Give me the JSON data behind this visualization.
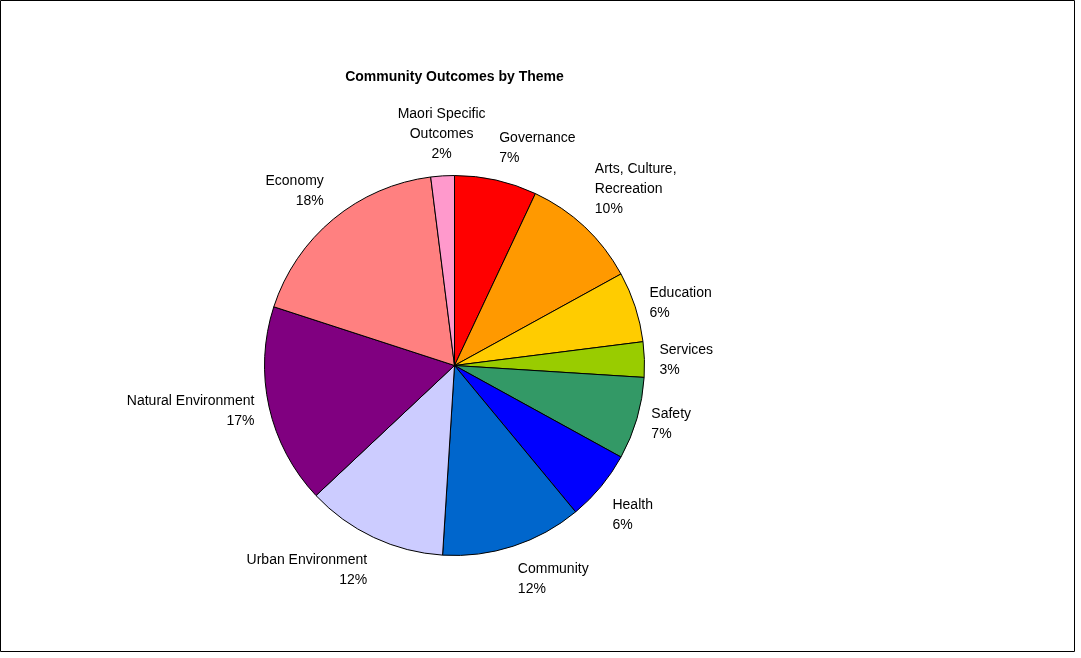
{
  "chart_data": {
    "type": "pie",
    "title": "Community Outcomes by Theme",
    "categories": [
      "Governance",
      "Arts, Culture, Recreation",
      "Education",
      "Services",
      "Safety",
      "Health",
      "Community",
      "Urban Environment",
      "Natural Environment",
      "Economy",
      "Maori Specific Outcomes"
    ],
    "values": [
      7,
      10,
      6,
      3,
      7,
      6,
      12,
      12,
      17,
      18,
      2
    ],
    "colors": [
      "#ff0000",
      "#ff9900",
      "#ffcc00",
      "#99cc00",
      "#339966",
      "#0000ff",
      "#0066cc",
      "#ccccff",
      "#800080",
      "#ff8080",
      "#ff99cc"
    ],
    "value_labels": [
      "7%",
      "10%",
      "6%",
      "3%",
      "7%",
      "6%",
      "12%",
      "12%",
      "17%",
      "18%",
      "2%"
    ]
  }
}
